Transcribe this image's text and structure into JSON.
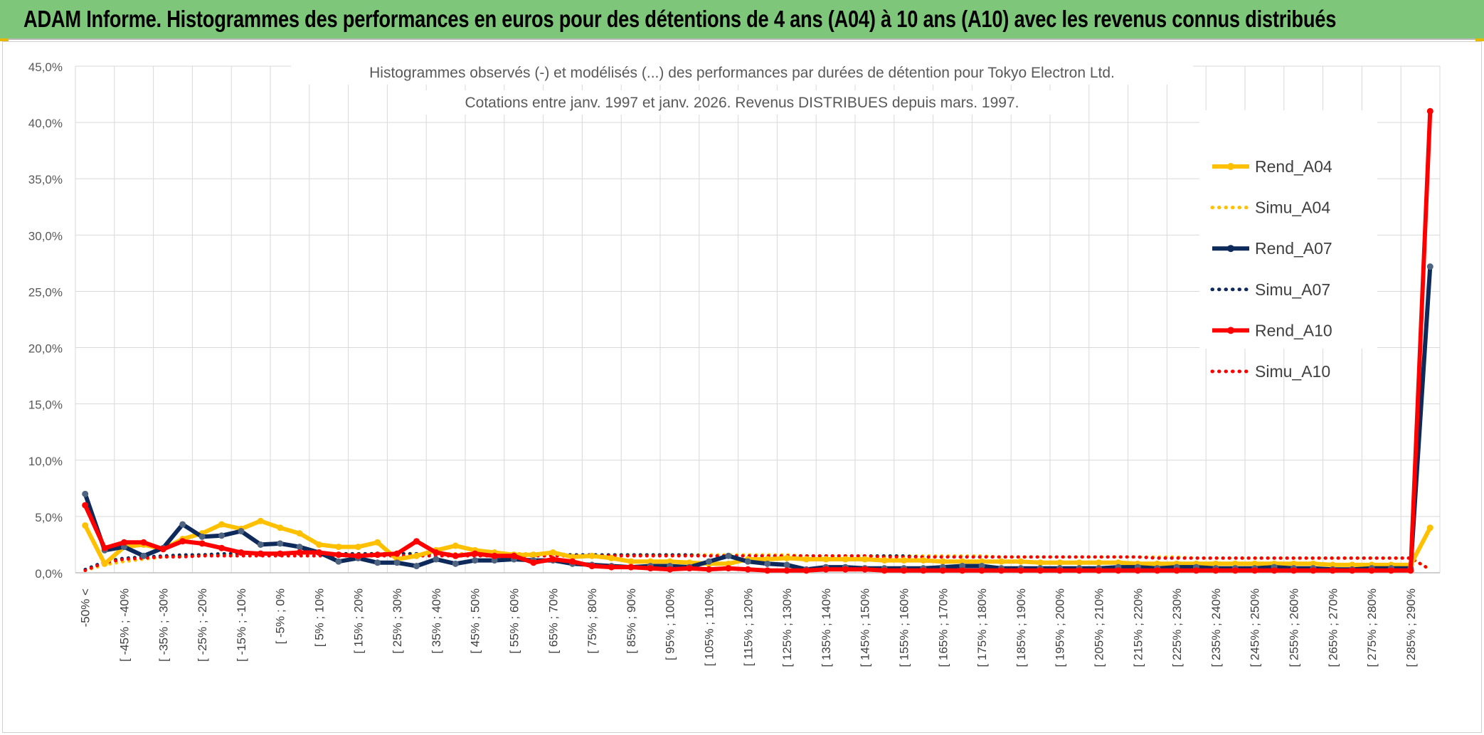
{
  "header": {
    "title": "ADAM Informe. Histogrammes des performances en euros pour des détentions de 4 ans (A04) à 10 ans (A10) avec les revenus connus distribués"
  },
  "colors": {
    "banner": "#7dc67a",
    "A04": "#ffc000",
    "A07": "#0d2a5a",
    "A10": "#ff0000"
  },
  "chart_data": {
    "type": "line",
    "title": "Histogrammes observés (-) et modélisés (...) des performances par durées de détention pour Tokyo Electron Ltd.",
    "subtitle": "Cotations entre janv. 1997 et janv. 2026.  Revenus DISTRIBUES depuis mars. 1997.",
    "xlabel": "",
    "ylabel": "",
    "ylim": [
      0,
      45
    ],
    "y_ticks": [
      "0,0%",
      "5,0%",
      "10,0%",
      "15,0%",
      "20,0%",
      "25,0%",
      "30,0%",
      "35,0%",
      "40,0%",
      "45,0%"
    ],
    "grid": true,
    "legend_position": "top-right",
    "x_labels": [
      "-50% <",
      "[ -45% ; -40%",
      "[ -35% ; -30%",
      "[ -25% ; -20%",
      "[ -15% ; -10%",
      "[ -5% ; 0%",
      "[ 5% ; 10%",
      "[ 15% ; 20%",
      "[ 25% ; 30%",
      "[ 35% ; 40%",
      "[ 45% ; 50%",
      "[ 55% ; 60%",
      "[ 65% ; 70%",
      "[ 75% ; 80%",
      "[ 85% ; 90%",
      "[ 95% ; 100%",
      "[ 105% ; 110%",
      "[ 115% ; 120%",
      "[ 125% ; 130%",
      "[ 135% ; 140%",
      "[ 145% ; 150%",
      "[ 155% ; 160%",
      "[ 165% ; 170%",
      "[ 175% ; 180%",
      "[ 185% ; 190%",
      "[ 195% ; 200%",
      "[ 205% ; 210%",
      "[ 215% ; 220%",
      "[ 225% ; 230%",
      "[ 235% ; 240%",
      "[ 245% ; 250%",
      "[ 255% ; 260%",
      "[ 265% ; 270%",
      "[ 275% ; 280%",
      "[ 285% ; 290%"
    ],
    "series": [
      {
        "name": "Rend_A04",
        "style": "solid",
        "color": "#ffc000",
        "values": [
          4.2,
          0.8,
          2.3,
          2.5,
          2.1,
          3.0,
          3.5,
          4.3,
          3.9,
          4.6,
          4.0,
          3.5,
          2.5,
          2.3,
          2.3,
          2.7,
          1.2,
          1.5,
          2.0,
          2.4,
          2.0,
          1.8,
          1.6,
          1.6,
          1.8,
          1.4,
          1.5,
          1.3,
          1.0,
          1.0,
          1.0,
          0.9,
          0.8,
          0.8,
          1.2,
          1.2,
          1.3,
          1.2,
          1.2,
          1.2,
          1.2,
          1.1,
          1.1,
          1.1,
          1.0,
          1.0,
          1.0,
          1.0,
          1.0,
          0.9,
          0.9,
          0.9,
          0.9,
          0.9,
          0.8,
          0.8,
          0.8,
          0.8,
          0.8,
          0.8,
          0.8,
          0.8,
          0.8,
          0.8,
          0.7,
          0.7,
          0.7,
          0.7,
          0.7,
          4.0
        ]
      },
      {
        "name": "Simu_A04",
        "style": "dotted",
        "color": "#ffc000",
        "values": [
          0.2,
          0.7,
          1.0,
          1.2,
          1.4,
          1.5,
          1.6,
          1.6,
          1.7,
          1.7,
          1.7,
          1.7,
          1.7,
          1.7,
          1.7,
          1.7,
          1.7,
          1.7,
          1.7,
          1.7,
          1.7,
          1.7,
          1.7,
          1.7,
          1.7,
          1.6,
          1.6,
          1.6,
          1.6,
          1.6,
          1.6,
          1.6,
          1.6,
          1.6,
          1.6,
          1.6,
          1.6,
          1.5,
          1.5,
          1.5,
          1.5,
          1.5,
          1.5,
          1.5,
          1.5,
          1.5,
          1.5,
          1.4,
          1.4,
          1.4,
          1.4,
          1.4,
          1.4,
          1.4,
          1.4,
          1.4,
          1.4,
          1.3,
          1.3,
          1.3,
          1.3,
          1.3,
          1.3,
          1.3,
          1.3,
          1.3,
          1.3,
          1.3,
          1.3,
          0.3
        ]
      },
      {
        "name": "Rend_A07",
        "style": "solid",
        "color": "#0d2a5a",
        "values": [
          7.0,
          2.0,
          2.3,
          1.5,
          2.2,
          4.3,
          3.2,
          3.3,
          3.7,
          2.5,
          2.6,
          2.3,
          1.8,
          1.0,
          1.3,
          0.9,
          0.9,
          0.6,
          1.2,
          0.8,
          1.1,
          1.1,
          1.2,
          1.1,
          1.1,
          0.8,
          0.7,
          0.6,
          0.5,
          0.6,
          0.6,
          0.5,
          1.0,
          1.5,
          1.0,
          0.8,
          0.7,
          0.3,
          0.5,
          0.5,
          0.4,
          0.4,
          0.4,
          0.4,
          0.5,
          0.6,
          0.6,
          0.4,
          0.4,
          0.4,
          0.4,
          0.4,
          0.4,
          0.5,
          0.5,
          0.4,
          0.5,
          0.5,
          0.4,
          0.4,
          0.4,
          0.5,
          0.4,
          0.4,
          0.3,
          0.3,
          0.4,
          0.4,
          0.4,
          27.2
        ]
      },
      {
        "name": "Simu_A07",
        "style": "dotted",
        "color": "#0d2a5a",
        "values": [
          0.3,
          1.0,
          1.3,
          1.4,
          1.5,
          1.6,
          1.6,
          1.7,
          1.7,
          1.7,
          1.7,
          1.7,
          1.7,
          1.7,
          1.7,
          1.7,
          1.7,
          1.7,
          1.6,
          1.6,
          1.6,
          1.6,
          1.6,
          1.6,
          1.6,
          1.6,
          1.6,
          1.6,
          1.6,
          1.6,
          1.6,
          1.6,
          1.5,
          1.5,
          1.5,
          1.5,
          1.5,
          1.5,
          1.5,
          1.5,
          1.5,
          1.5,
          1.5,
          1.4,
          1.4,
          1.4,
          1.4,
          1.4,
          1.4,
          1.4,
          1.4,
          1.4,
          1.4,
          1.4,
          1.4,
          1.3,
          1.3,
          1.3,
          1.3,
          1.3,
          1.3,
          1.3,
          1.3,
          1.3,
          1.3,
          1.3,
          1.3,
          1.3,
          1.3,
          0.3
        ]
      },
      {
        "name": "Rend_A10",
        "style": "solid",
        "color": "#ff0000",
        "values": [
          6.0,
          2.2,
          2.7,
          2.7,
          2.1,
          2.8,
          2.6,
          2.2,
          1.8,
          1.7,
          1.7,
          1.8,
          1.8,
          1.6,
          1.5,
          1.6,
          1.7,
          2.8,
          1.8,
          1.5,
          1.7,
          1.5,
          1.5,
          0.9,
          1.2,
          1.0,
          0.6,
          0.5,
          0.5,
          0.4,
          0.3,
          0.4,
          0.3,
          0.4,
          0.3,
          0.2,
          0.2,
          0.2,
          0.3,
          0.3,
          0.3,
          0.2,
          0.2,
          0.2,
          0.2,
          0.2,
          0.2,
          0.2,
          0.2,
          0.2,
          0.2,
          0.2,
          0.2,
          0.2,
          0.2,
          0.2,
          0.2,
          0.2,
          0.2,
          0.2,
          0.2,
          0.2,
          0.2,
          0.2,
          0.2,
          0.2,
          0.2,
          0.2,
          0.2,
          41.0
        ]
      },
      {
        "name": "Simu_A10",
        "style": "dotted",
        "color": "#ff0000",
        "values": [
          0.2,
          0.9,
          1.2,
          1.3,
          1.4,
          1.4,
          1.5,
          1.5,
          1.5,
          1.5,
          1.5,
          1.5,
          1.5,
          1.5,
          1.5,
          1.5,
          1.5,
          1.5,
          1.5,
          1.5,
          1.5,
          1.5,
          1.5,
          1.5,
          1.5,
          1.5,
          1.5,
          1.5,
          1.5,
          1.5,
          1.5,
          1.5,
          1.5,
          1.5,
          1.5,
          1.5,
          1.5,
          1.5,
          1.5,
          1.5,
          1.5,
          1.4,
          1.4,
          1.4,
          1.4,
          1.4,
          1.4,
          1.4,
          1.4,
          1.4,
          1.4,
          1.4,
          1.4,
          1.4,
          1.4,
          1.3,
          1.3,
          1.3,
          1.3,
          1.3,
          1.3,
          1.3,
          1.3,
          1.3,
          1.3,
          1.3,
          1.3,
          1.3,
          1.3,
          0.3
        ]
      }
    ]
  }
}
